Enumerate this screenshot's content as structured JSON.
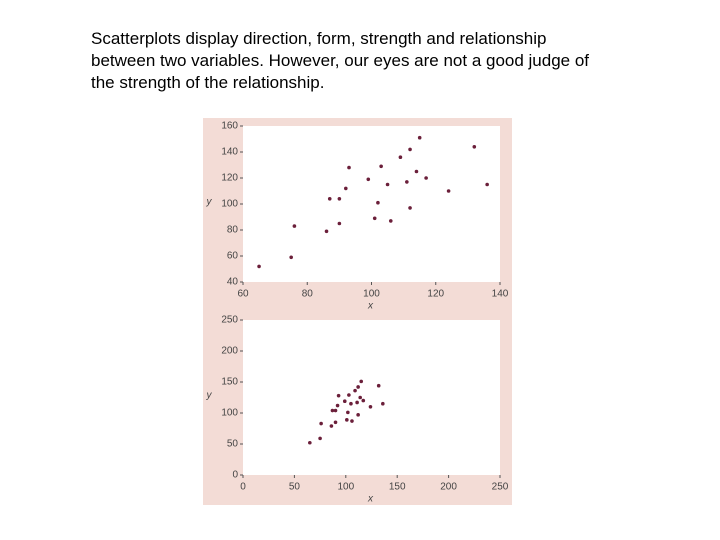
{
  "body_lines": [
    "Scatterplots display direction, form, strength and relationship",
    "between two variables.  However, our eyes are not a good judge of",
    "the strength of the relationship."
  ],
  "chart_data": [
    {
      "type": "scatter",
      "xlabel": "x",
      "ylabel": "y",
      "color": "#6b1f3a",
      "x": [
        65,
        75,
        76,
        86,
        87,
        90,
        90,
        92,
        93,
        99,
        101,
        102,
        103,
        105,
        106,
        109,
        111,
        112,
        112,
        114,
        115,
        117,
        124,
        132,
        136
      ],
      "values": [
        52,
        59,
        83,
        79,
        104,
        85,
        104,
        112,
        128,
        119,
        89,
        101,
        129,
        115,
        87,
        136,
        117,
        97,
        142,
        125,
        151,
        120,
        110,
        144,
        115
      ],
      "xlim": [
        60,
        140
      ],
      "xticks": [
        60,
        80,
        100,
        120,
        140
      ],
      "ylim": [
        40,
        160
      ],
      "yticks": [
        40,
        60,
        80,
        100,
        120,
        140,
        160
      ]
    },
    {
      "type": "scatter",
      "xlabel": "x",
      "ylabel": "y",
      "color": "#6b1f3a",
      "x": [
        65,
        75,
        76,
        86,
        87,
        90,
        90,
        92,
        93,
        99,
        101,
        102,
        103,
        105,
        106,
        109,
        111,
        112,
        112,
        114,
        115,
        117,
        124,
        132,
        136
      ],
      "values": [
        52,
        59,
        83,
        79,
        104,
        85,
        104,
        112,
        128,
        119,
        89,
        101,
        129,
        115,
        87,
        136,
        117,
        97,
        142,
        125,
        151,
        120,
        110,
        144,
        115
      ],
      "xlim": [
        0,
        250
      ],
      "xticks": [
        0,
        50,
        100,
        150,
        200,
        250
      ],
      "ylim": [
        0,
        250
      ],
      "yticks": [
        0,
        50,
        100,
        150,
        200,
        250
      ]
    }
  ]
}
